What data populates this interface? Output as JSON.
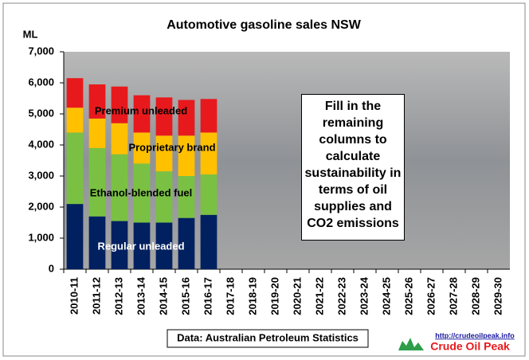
{
  "chart_data": {
    "type": "stacked_bar",
    "title": "Automotive gasoline sales NSW",
    "ylabel": "ML",
    "categories": [
      "2010-11",
      "2011-12",
      "2012-13",
      "2013-14",
      "2014-15",
      "2015-16",
      "2016-17",
      "2017-18",
      "2018-19",
      "2019-20",
      "2020-21",
      "2021-22",
      "2022-23",
      "2023-24",
      "2024-25",
      "2025-26",
      "2026-27",
      "2027-28",
      "2028-29",
      "2029-30"
    ],
    "series": [
      {
        "name": "Regular unleaded",
        "color": "#002060",
        "values": [
          2100,
          1700,
          1550,
          1500,
          1500,
          1650,
          1750,
          null,
          null,
          null,
          null,
          null,
          null,
          null,
          null,
          null,
          null,
          null,
          null,
          null
        ]
      },
      {
        "name": "Ethanol-blended fuel",
        "color": "#7ac143",
        "values": [
          2300,
          2200,
          2150,
          1900,
          1650,
          1350,
          1300,
          null,
          null,
          null,
          null,
          null,
          null,
          null,
          null,
          null,
          null,
          null,
          null,
          null
        ]
      },
      {
        "name": "Proprietary brand",
        "color": "#ffc000",
        "values": [
          800,
          950,
          1000,
          1000,
          1150,
          1300,
          1350,
          null,
          null,
          null,
          null,
          null,
          null,
          null,
          null,
          null,
          null,
          null,
          null,
          null
        ]
      },
      {
        "name": "Premium unleaded",
        "color": "#e8191c",
        "values": [
          950,
          1100,
          1180,
          1200,
          1230,
          1150,
          1080,
          null,
          null,
          null,
          null,
          null,
          null,
          null,
          null,
          null,
          null,
          null,
          null,
          null
        ]
      }
    ],
    "ylim": [
      0,
      7000
    ],
    "yticks": [
      0,
      {
        "value": 1000,
        "label": "1,000"
      },
      {
        "value": 2000,
        "label": "2,000"
      },
      {
        "value": 3000,
        "label": "3,000"
      },
      {
        "value": 4000,
        "label": "4,000"
      },
      {
        "value": 5000,
        "label": "5,000"
      },
      {
        "value": 6000,
        "label": "6,000"
      },
      {
        "value": 7000,
        "label": "7,000"
      }
    ],
    "annotation": "Fill in the remaining columns to calculate sustainability in terms of oil supplies and CO2 emissions",
    "source": "Data: Australian Petroleum Statistics",
    "logo_url": "http://crudeoilpeak.info",
    "logo_name": "Crude Oil Peak"
  }
}
